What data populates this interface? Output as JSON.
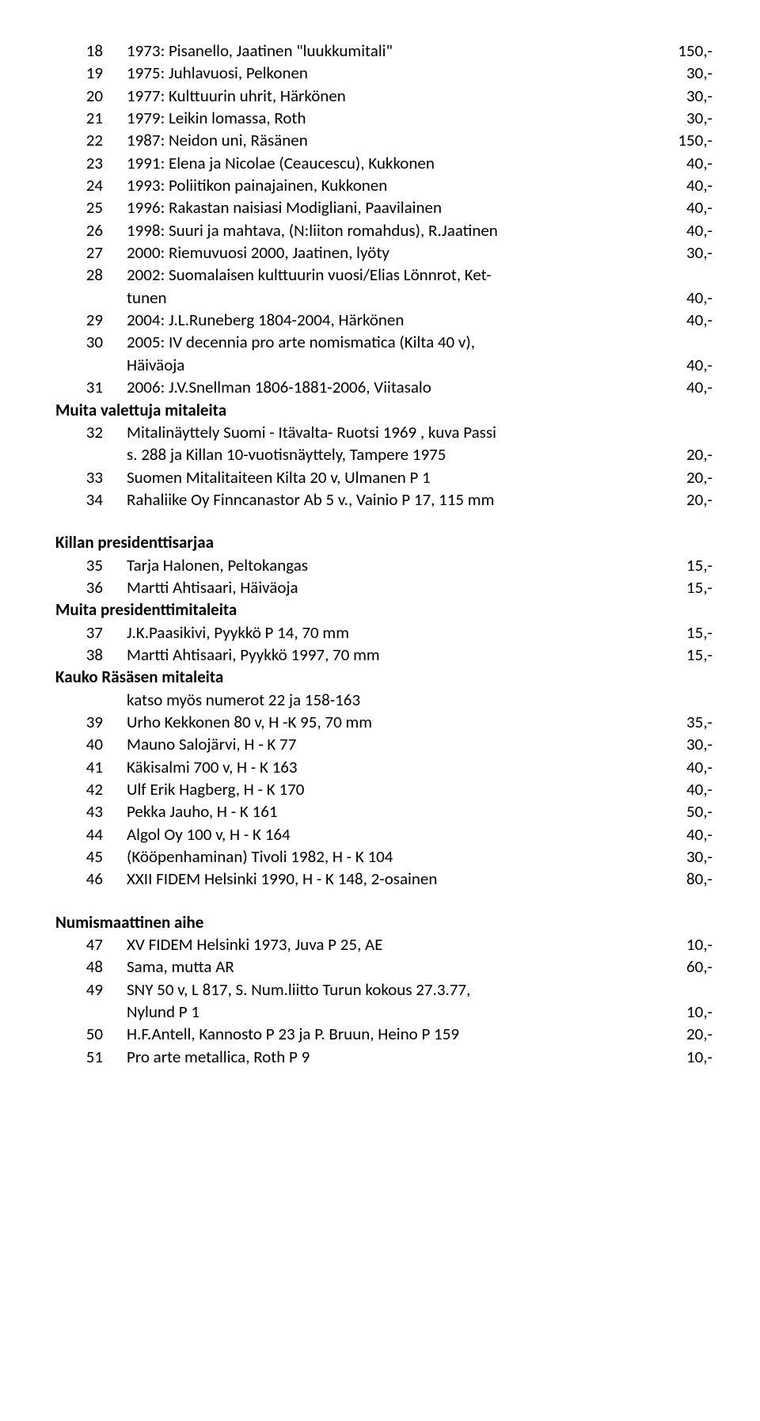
{
  "items": [
    {
      "n": "18",
      "d": "1973: Pisanello, Jaatinen \"luukkumitali\"",
      "p": "150,-"
    },
    {
      "n": "19",
      "d": "1975: Juhlavuosi, Pelkonen",
      "p": "30,-"
    },
    {
      "n": "20",
      "d": "1977: Kulttuurin uhrit, Härkönen",
      "p": "30,-"
    },
    {
      "n": "21",
      "d": "1979: Leikin lomassa, Roth",
      "p": "30,-"
    },
    {
      "n": "22",
      "d": "1987: Neidon uni, Räsänen",
      "p": "150,-"
    },
    {
      "n": "23",
      "d": "1991: Elena ja Nicolae (Ceaucescu), Kukkonen",
      "p": "40,-"
    },
    {
      "n": "24",
      "d": "1993: Poliitikon painajainen, Kukkonen",
      "p": "40,-"
    },
    {
      "n": "25",
      "d": "1996: Rakastan naisiasi Modigliani, Paavilainen",
      "p": "40,-"
    },
    {
      "n": "26",
      "d": "1998: Suuri ja mahtava, (N:liiton romahdus), R.Jaatinen",
      "p": "40,-"
    },
    {
      "n": "27",
      "d": "2000: Riemuvuosi 2000, Jaatinen, lyöty",
      "p": "30,-"
    },
    {
      "n": "28",
      "d": "2002: Suomalaisen kulttuurin vuosi/Elias Lönnrot, Ket-",
      "p": ""
    },
    {
      "n": "",
      "d": "tunen",
      "p": "40,-",
      "sub": true
    },
    {
      "n": "29",
      "d": "2004: J.L.Runeberg 1804-2004, Härkönen",
      "p": "40,-"
    },
    {
      "n": "30",
      "d": "2005: IV decennia pro arte nomismatica (Kilta 40 v),",
      "p": ""
    },
    {
      "n": "",
      "d": "Häiväoja",
      "p": "40,-",
      "sub": true
    },
    {
      "n": "31",
      "d": "2006: J.V.Snellman 1806-1881-2006, Viitasalo",
      "p": "40,-"
    }
  ],
  "heading1": "Muita valettuja mitaleita",
  "items2": [
    {
      "n": "32",
      "d": "Mitalinäyttely Suomi - Itävalta- Ruotsi 1969 , kuva Passi",
      "p": ""
    },
    {
      "n": "",
      "d": "s. 288 ja Killan 10-vuotisnäyttely, Tampere 1975",
      "p": "20,-",
      "sub": true
    },
    {
      "n": "33",
      "d": "Suomen Mitalitaiteen Kilta 20 v, Ulmanen P 1",
      "p": "20,-"
    },
    {
      "n": "34",
      "d": "Rahaliike Oy Finncanastor Ab 5 v., Vainio P 17, 115 mm",
      "p": "20,-"
    }
  ],
  "heading2": "Killan presidenttisarjaa",
  "items3": [
    {
      "n": "35",
      "d": "Tarja Halonen, Peltokangas",
      "p": "15,-"
    },
    {
      "n": "36",
      "d": "Martti Ahtisaari,  Häiväoja",
      "p": "15,-"
    }
  ],
  "heading3": "Muita presidenttimitaleita",
  "items4": [
    {
      "n": "37",
      "d": "J.K.Paasikivi, Pyykkö P 14, 70 mm",
      "p": "15,-"
    },
    {
      "n": "38",
      "d": "Martti Ahtisaari, Pyykkö 1997, 70 mm",
      "p": "15,-"
    }
  ],
  "heading4": "Kauko Räsäsen mitaleita",
  "note4": "katso myös numerot 22 ja 158-163",
  "items5": [
    {
      "n": "39",
      "d": "Urho Kekkonen 80 v, H -K 95, 70 mm",
      "p": "35,-"
    },
    {
      "n": "40",
      "d": "Mauno Salojärvi, H - K 77",
      "p": "30,-"
    },
    {
      "n": "41",
      "d": "Käkisalmi 700 v, H - K 163",
      "p": "40,-"
    },
    {
      "n": "42",
      "d": "Ulf Erik Hagberg, H - K 170",
      "p": "40,-"
    },
    {
      "n": "43",
      "d": "Pekka Jauho, H - K 161",
      "p": "50,-"
    },
    {
      "n": "44",
      "d": "Algol Oy 100 v, H - K 164",
      "p": "40,-"
    },
    {
      "n": "45",
      "d": "(Kööpenhaminan) Tivoli 1982, H - K 104",
      "p": "30,-"
    },
    {
      "n": "46",
      "d": "XXII FIDEM Helsinki 1990, H - K 148, 2-osainen",
      "p": "80,-"
    }
  ],
  "heading5": "Numismaattinen aihe",
  "items6": [
    {
      "n": "47",
      "d": "XV FIDEM Helsinki 1973, Juva P 25, AE",
      "p": "10,-"
    },
    {
      "n": "48",
      "d": "Sama, mutta AR",
      "p": "60,-"
    },
    {
      "n": "49",
      "d": "SNY 50 v, L 817, S. Num.liitto Turun kokous 27.3.77,",
      "p": ""
    },
    {
      "n": "",
      "d": "Nylund P 1",
      "p": "10,-",
      "sub": true
    },
    {
      "n": "50",
      "d": "H.F.Antell, Kannosto  P 23 ja P. Bruun, Heino P 159",
      "p": "20,-"
    },
    {
      "n": "51",
      "d": "Pro arte metallica, Roth P 9",
      "p": "10,-"
    }
  ]
}
